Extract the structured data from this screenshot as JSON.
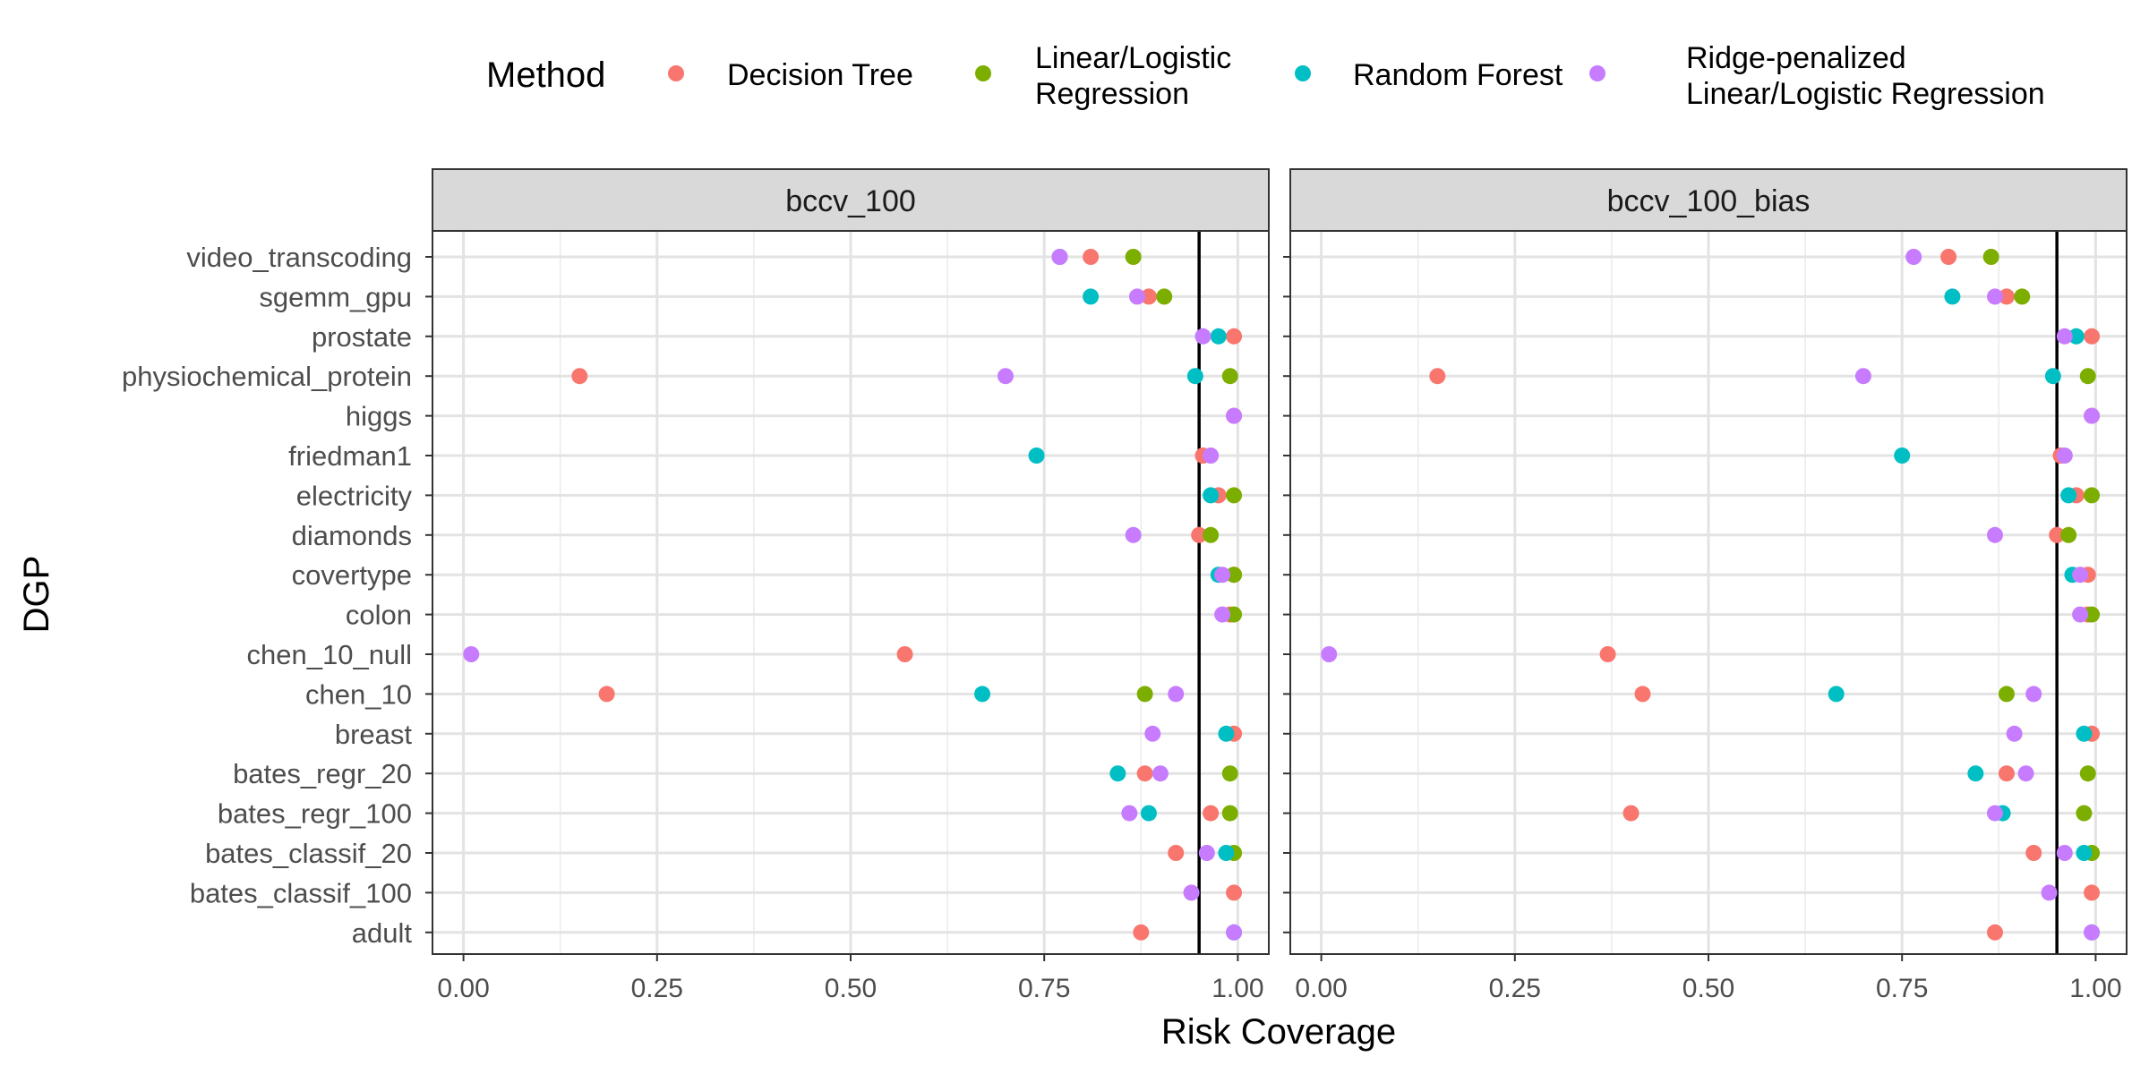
{
  "chart_data": {
    "type": "scatter",
    "xlabel": "Risk Coverage",
    "ylabel": "DGP",
    "xlim": [
      -0.04,
      1.04
    ],
    "x_ticks": [
      0.0,
      0.25,
      0.5,
      0.75,
      1.0
    ],
    "x_tick_labels": [
      "0.00",
      "0.25",
      "0.50",
      "0.75",
      "1.00"
    ],
    "reference_line": 0.95,
    "grid": true,
    "legend": {
      "title": "Method",
      "position": "top",
      "entries": [
        {
          "label_lines": [
            "Decision Tree"
          ],
          "color": "#F8766D"
        },
        {
          "label_lines": [
            "Linear/Logistic",
            "Regression"
          ],
          "color": "#7CAE00"
        },
        {
          "label_lines": [
            "Random Forest"
          ],
          "color": "#00BFC4"
        },
        {
          "label_lines": [
            "Ridge-penalized",
            "Linear/Logistic Regression"
          ],
          "color": "#C77CFF"
        }
      ]
    },
    "categories": [
      "video_transcoding",
      "sgemm_gpu",
      "prostate",
      "physiochemical_protein",
      "higgs",
      "friedman1",
      "electricity",
      "diamonds",
      "covertype",
      "colon",
      "chen_10_null",
      "chen_10",
      "breast",
      "bates_regr_20",
      "bates_regr_100",
      "bates_classif_20",
      "bates_classif_100",
      "adult"
    ],
    "panels": [
      {
        "title": "bccv_100",
        "series": [
          {
            "name": "Decision Tree",
            "values": [
              0.81,
              0.885,
              0.995,
              0.15,
              0.995,
              0.955,
              0.975,
              0.95,
              0.995,
              0.99,
              0.57,
              0.185,
              0.995,
              0.88,
              0.965,
              0.92,
              0.995,
              0.875
            ]
          },
          {
            "name": "Linear/Logistic Regression",
            "values": [
              0.865,
              0.905,
              null,
              0.99,
              null,
              null,
              0.995,
              0.965,
              0.995,
              0.995,
              null,
              0.88,
              null,
              0.99,
              0.99,
              0.995,
              null,
              null
            ]
          },
          {
            "name": "Random Forest",
            "values": [
              0.77,
              0.81,
              0.975,
              0.945,
              null,
              0.74,
              0.965,
              null,
              0.975,
              null,
              null,
              0.67,
              0.985,
              0.845,
              0.885,
              0.985,
              null,
              0.995
            ]
          },
          {
            "name": "Ridge-penalized Linear/Logistic Regression",
            "values": [
              0.77,
              0.87,
              0.955,
              0.7,
              0.995,
              0.965,
              null,
              0.865,
              0.98,
              0.98,
              0.01,
              0.92,
              0.89,
              0.9,
              0.86,
              0.96,
              0.94,
              0.995
            ]
          }
        ]
      },
      {
        "title": "bccv_100_bias",
        "series": [
          {
            "name": "Decision Tree",
            "values": [
              0.81,
              0.885,
              0.995,
              0.15,
              0.995,
              0.955,
              0.975,
              0.95,
              0.99,
              0.99,
              0.37,
              0.415,
              0.995,
              0.885,
              0.4,
              0.92,
              0.995,
              0.87
            ]
          },
          {
            "name": "Linear/Logistic Regression",
            "values": [
              0.865,
              0.905,
              null,
              0.99,
              null,
              null,
              0.995,
              0.965,
              null,
              0.995,
              null,
              0.885,
              null,
              0.99,
              0.985,
              0.995,
              null,
              null
            ]
          },
          {
            "name": "Random Forest",
            "values": [
              null,
              0.815,
              0.975,
              0.945,
              null,
              0.75,
              0.965,
              null,
              0.97,
              null,
              null,
              0.665,
              0.985,
              0.845,
              0.88,
              0.985,
              null,
              0.995
            ]
          },
          {
            "name": "Ridge-penalized Linear/Logistic Regression",
            "values": [
              0.765,
              0.87,
              0.96,
              0.7,
              0.995,
              0.96,
              null,
              0.87,
              0.98,
              0.98,
              0.01,
              0.92,
              0.895,
              0.91,
              0.87,
              0.96,
              0.94,
              0.995
            ]
          }
        ]
      }
    ]
  }
}
